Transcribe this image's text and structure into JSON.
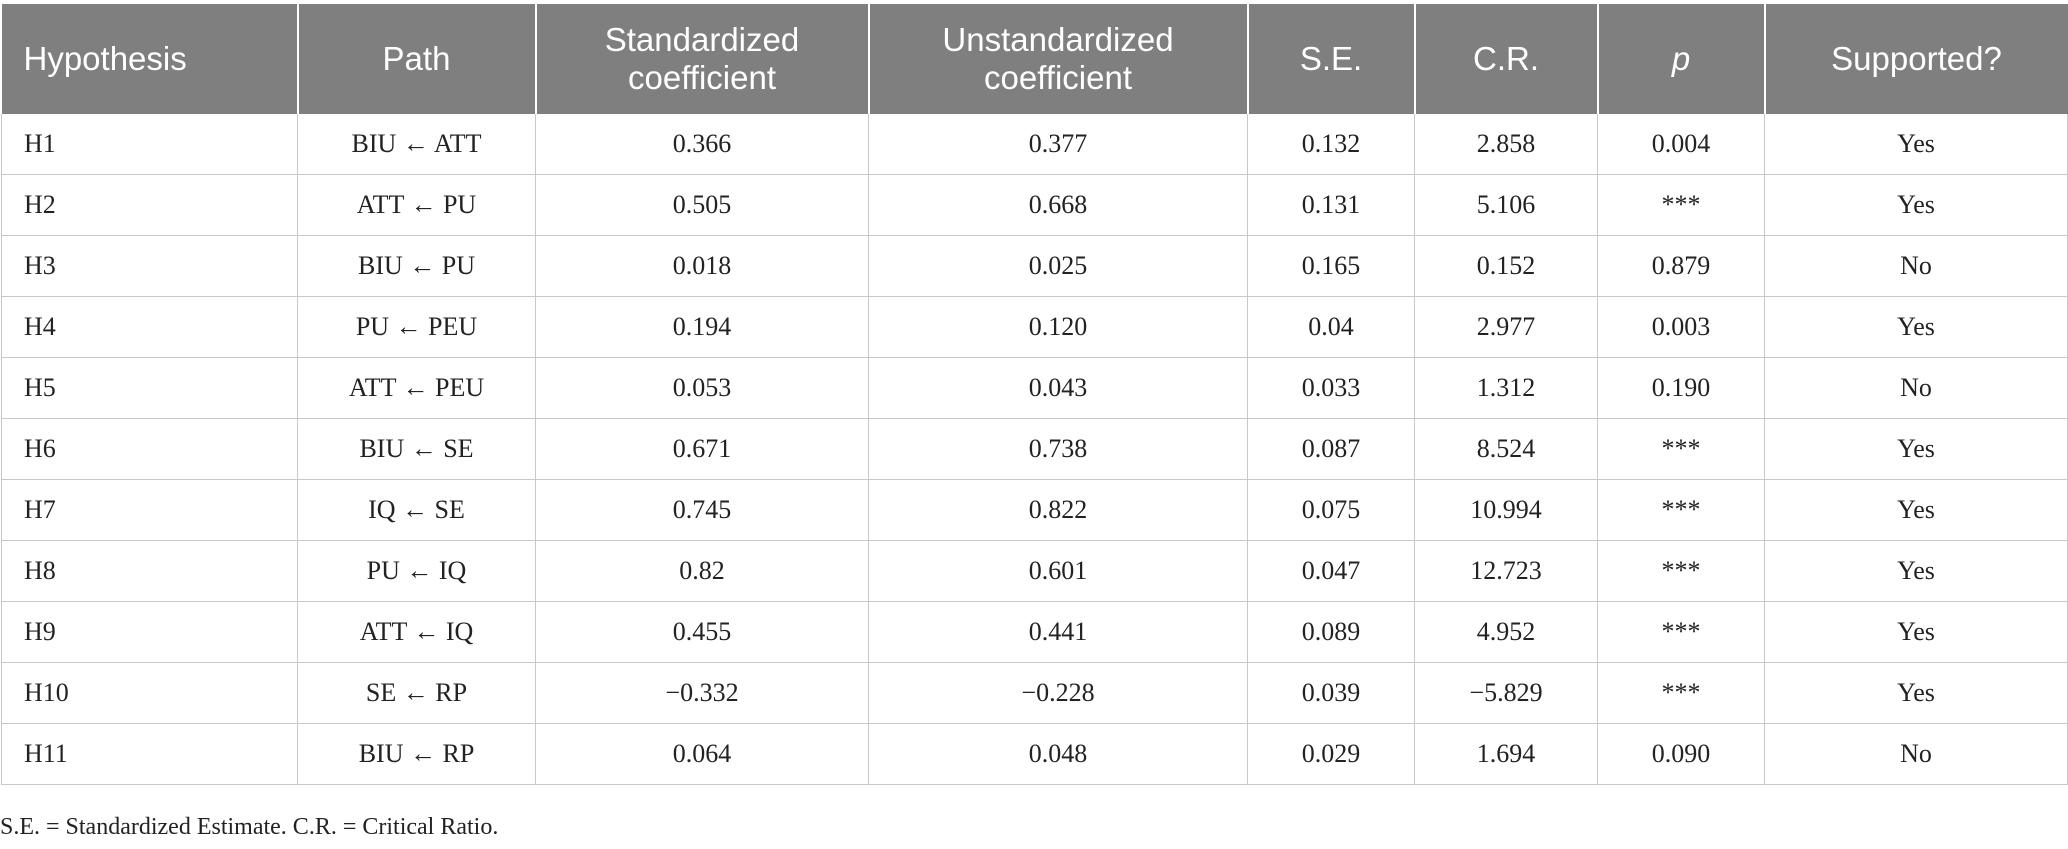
{
  "table": {
    "headers": [
      {
        "line1": "Hypothesis",
        "line2": ""
      },
      {
        "line1": "Path",
        "line2": ""
      },
      {
        "line1": "Standardized",
        "line2": "coefficient"
      },
      {
        "line1": "Unstandardized",
        "line2": "coefficient"
      },
      {
        "line1": "S.E.",
        "line2": ""
      },
      {
        "line1": "C.R.",
        "line2": ""
      },
      {
        "line1": "p",
        "line2": ""
      },
      {
        "line1": "Supported?",
        "line2": ""
      }
    ],
    "rows": [
      [
        "H1",
        "BIU ← ATT",
        "0.366",
        "0.377",
        "0.132",
        "2.858",
        "0.004",
        "Yes"
      ],
      [
        "H2",
        "ATT ← PU",
        "0.505",
        "0.668",
        "0.131",
        "5.106",
        "***",
        "Yes"
      ],
      [
        "H3",
        "BIU ← PU",
        "0.018",
        "0.025",
        "0.165",
        "0.152",
        "0.879",
        "No"
      ],
      [
        "H4",
        "PU ← PEU",
        "0.194",
        "0.120",
        "0.04",
        "2.977",
        "0.003",
        "Yes"
      ],
      [
        "H5",
        "ATT ← PEU",
        "0.053",
        "0.043",
        "0.033",
        "1.312",
        "0.190",
        "No"
      ],
      [
        "H6",
        "BIU ← SE",
        "0.671",
        "0.738",
        "0.087",
        "8.524",
        "***",
        "Yes"
      ],
      [
        "H7",
        "IQ ← SE",
        "0.745",
        "0.822",
        "0.075",
        "10.994",
        "***",
        "Yes"
      ],
      [
        "H8",
        "PU ← IQ",
        "0.82",
        "0.601",
        "0.047",
        "12.723",
        "***",
        "Yes"
      ],
      [
        "H9",
        "ATT ← IQ",
        "0.455",
        "0.441",
        "0.089",
        "4.952",
        "***",
        "Yes"
      ],
      [
        "H10",
        "SE ← RP",
        "−0.332",
        "−0.228",
        "0.039",
        "−5.829",
        "***",
        "Yes"
      ],
      [
        "H11",
        "BIU ← RP",
        "0.064",
        "0.048",
        "0.029",
        "1.694",
        "0.090",
        "No"
      ]
    ]
  },
  "footnote": "S.E. = Standardized Estimate. C.R. = Critical Ratio."
}
